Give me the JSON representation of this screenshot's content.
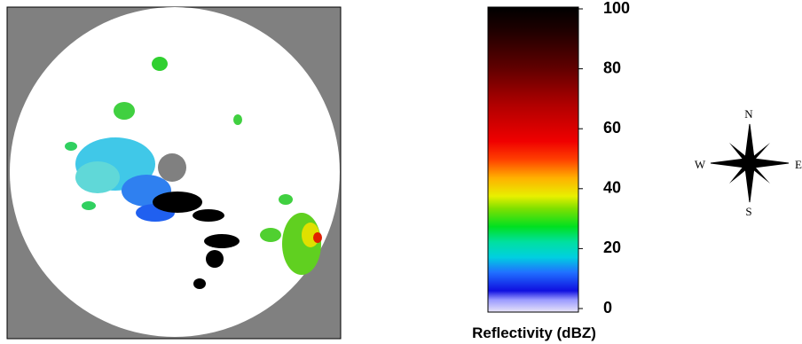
{
  "colorbar": {
    "label": "Reflectivity (dBZ)",
    "range": [
      0,
      100
    ],
    "ticks": [
      0,
      20,
      40,
      60,
      80,
      100
    ]
  },
  "compass": {
    "north": "N",
    "south": "S",
    "east": "E",
    "west": "W"
  }
}
